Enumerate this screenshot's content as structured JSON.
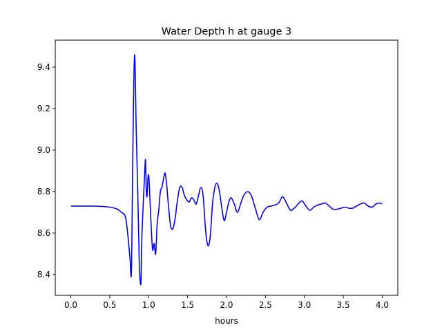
{
  "chart_data": {
    "type": "line",
    "title": "Water Depth h at gauge 3",
    "xlabel": "hours",
    "ylabel": "",
    "xlim": [
      -0.2,
      4.2
    ],
    "ylim": [
      8.3,
      9.53
    ],
    "xticks": [
      0.0,
      0.5,
      1.0,
      1.5,
      2.0,
      2.5,
      3.0,
      3.5,
      4.0
    ],
    "xtick_labels": [
      "0.0",
      "0.5",
      "1.0",
      "1.5",
      "2.0",
      "2.5",
      "3.0",
      "3.5",
      "4.0"
    ],
    "yticks": [
      8.4,
      8.6,
      8.8,
      9.0,
      9.2,
      9.4
    ],
    "ytick_labels": [
      "8.4",
      "8.6",
      "8.8",
      "9.0",
      "9.2",
      "9.4"
    ],
    "grid": false,
    "legend": "none",
    "series": [
      {
        "color": "#0000ff",
        "x": [
          0.0,
          0.3,
          0.5,
          0.6,
          0.65,
          0.7,
          0.73,
          0.76,
          0.78,
          0.8,
          0.82,
          0.84,
          0.86,
          0.88,
          0.9,
          0.91,
          0.93,
          0.95,
          0.96,
          0.97,
          0.98,
          0.99,
          1.0,
          1.01,
          1.03,
          1.05,
          1.07,
          1.09,
          1.11,
          1.13,
          1.15,
          1.17,
          1.19,
          1.21,
          1.23,
          1.25,
          1.28,
          1.31,
          1.34,
          1.37,
          1.4,
          1.43,
          1.46,
          1.49,
          1.52,
          1.55,
          1.58,
          1.61,
          1.64,
          1.67,
          1.7,
          1.73,
          1.76,
          1.79,
          1.82,
          1.85,
          1.88,
          1.91,
          1.94,
          1.97,
          2.0,
          2.03,
          2.06,
          2.1,
          2.14,
          2.18,
          2.22,
          2.27,
          2.32,
          2.37,
          2.42,
          2.47,
          2.52,
          2.57,
          2.62,
          2.67,
          2.72,
          2.77,
          2.82,
          2.87,
          2.92,
          2.97,
          3.02,
          3.07,
          3.12,
          3.17,
          3.22,
          3.27,
          3.32,
          3.37,
          3.42,
          3.47,
          3.52,
          3.57,
          3.62,
          3.67,
          3.72,
          3.77,
          3.82,
          3.87,
          3.92,
          3.97,
          4.0
        ],
        "values": [
          8.73,
          8.73,
          8.725,
          8.715,
          8.7,
          8.68,
          8.6,
          8.48,
          8.43,
          9.1,
          9.46,
          9.1,
          8.8,
          8.45,
          8.355,
          8.55,
          8.74,
          8.9,
          8.95,
          8.8,
          8.78,
          8.86,
          8.88,
          8.82,
          8.65,
          8.52,
          8.55,
          8.5,
          8.65,
          8.71,
          8.8,
          8.82,
          8.86,
          8.89,
          8.84,
          8.75,
          8.64,
          8.62,
          8.67,
          8.76,
          8.82,
          8.82,
          8.78,
          8.76,
          8.75,
          8.77,
          8.76,
          8.74,
          8.78,
          8.82,
          8.78,
          8.62,
          8.54,
          8.58,
          8.74,
          8.82,
          8.84,
          8.8,
          8.72,
          8.66,
          8.7,
          8.75,
          8.77,
          8.74,
          8.7,
          8.74,
          8.78,
          8.8,
          8.78,
          8.72,
          8.665,
          8.7,
          8.725,
          8.73,
          8.735,
          8.745,
          8.775,
          8.745,
          8.71,
          8.72,
          8.74,
          8.755,
          8.73,
          8.71,
          8.725,
          8.735,
          8.74,
          8.745,
          8.73,
          8.715,
          8.715,
          8.72,
          8.725,
          8.72,
          8.72,
          8.73,
          8.74,
          8.745,
          8.73,
          8.725,
          8.74,
          8.745,
          8.74
        ]
      }
    ]
  }
}
